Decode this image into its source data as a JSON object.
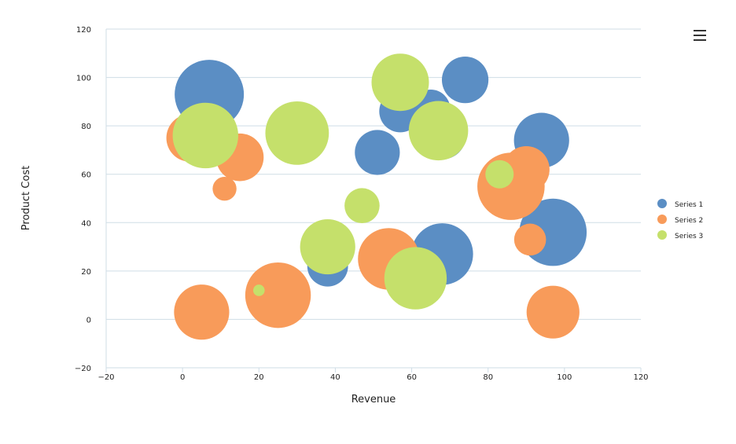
{
  "chart_data": {
    "type": "bubble",
    "title": "",
    "xlabel": "Revenue",
    "ylabel": "Product Cost",
    "xlim": [
      -20,
      120
    ],
    "ylim": [
      -20,
      120
    ],
    "xticks": [
      -20,
      0,
      20,
      40,
      60,
      80,
      100,
      120
    ],
    "yticks": [
      -20,
      0,
      20,
      40,
      60,
      80,
      100,
      120
    ],
    "grid": "horizontal",
    "legend_position": "right",
    "series": [
      {
        "name": "Series 1",
        "color": "#5b8ec4",
        "points": [
          {
            "x": 7,
            "y": 93,
            "z": 90
          },
          {
            "x": 51,
            "y": 69,
            "z": 35
          },
          {
            "x": 57,
            "y": 86,
            "z": 30
          },
          {
            "x": 65,
            "y": 87,
            "z": 25
          },
          {
            "x": 68,
            "y": 76,
            "z": 40
          },
          {
            "x": 74,
            "y": 99,
            "z": 38
          },
          {
            "x": 94,
            "y": 74,
            "z": 55
          },
          {
            "x": 97,
            "y": 36,
            "z": 85
          },
          {
            "x": 68,
            "y": 27,
            "z": 70
          },
          {
            "x": 38,
            "y": 22,
            "z": 28
          }
        ]
      },
      {
        "name": "Series 2",
        "color": "#f89b5a",
        "points": [
          {
            "x": 2,
            "y": 75,
            "z": 40
          },
          {
            "x": 15,
            "y": 67,
            "z": 40
          },
          {
            "x": 11,
            "y": 54,
            "z": 8
          },
          {
            "x": 25,
            "y": 10,
            "z": 80
          },
          {
            "x": 5,
            "y": 3,
            "z": 55
          },
          {
            "x": 54,
            "y": 25,
            "z": 70
          },
          {
            "x": 86,
            "y": 55,
            "z": 85
          },
          {
            "x": 90,
            "y": 62,
            "z": 38
          },
          {
            "x": 91,
            "y": 33,
            "z": 16
          },
          {
            "x": 97,
            "y": 3,
            "z": 50
          }
        ]
      },
      {
        "name": "Series 3",
        "color": "#c5e06b",
        "points": [
          {
            "x": 6,
            "y": 76,
            "z": 80
          },
          {
            "x": 30,
            "y": 77,
            "z": 75
          },
          {
            "x": 47,
            "y": 47,
            "z": 20
          },
          {
            "x": 38,
            "y": 30,
            "z": 55
          },
          {
            "x": 20,
            "y": 12,
            "z": 1
          },
          {
            "x": 57,
            "y": 98,
            "z": 60
          },
          {
            "x": 67,
            "y": 78,
            "z": 65
          },
          {
            "x": 61,
            "y": 17,
            "z": 72
          },
          {
            "x": 83,
            "y": 60,
            "z": 12
          }
        ]
      }
    ]
  },
  "menu": {
    "icon": "hamburger-menu-icon"
  }
}
